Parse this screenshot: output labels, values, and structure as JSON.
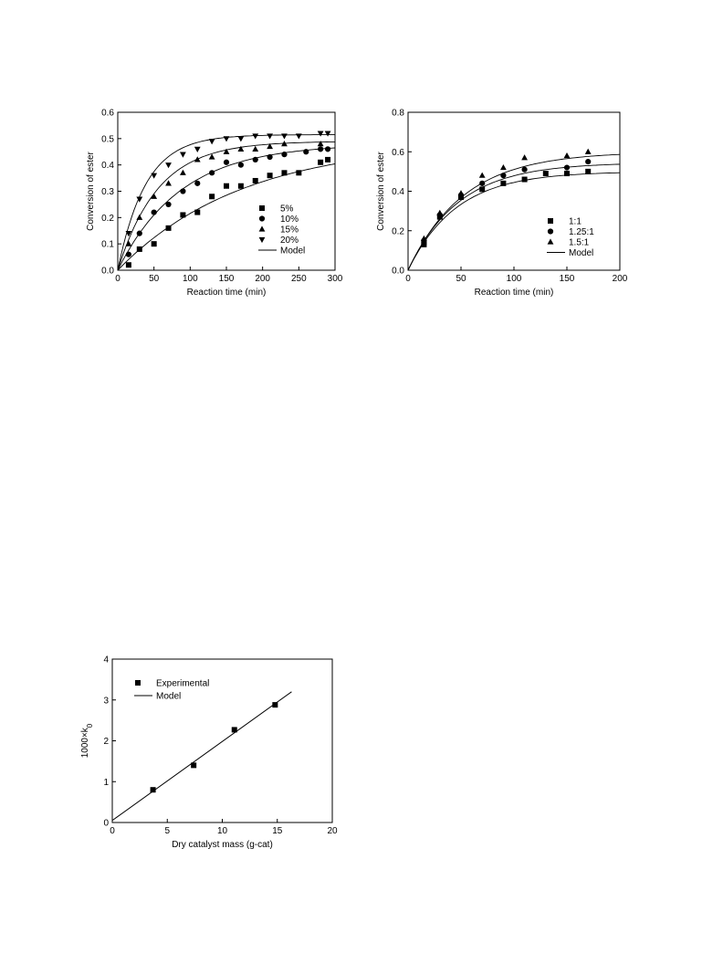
{
  "chart_data": [
    {
      "type": "scatter",
      "xlabel": "Reaction time (min)",
      "ylabel": "Conversion of ester",
      "xlim": [
        0,
        300
      ],
      "ylim": [
        0,
        0.6
      ],
      "xticks": [
        "0",
        "50",
        "100",
        "150",
        "200",
        "250",
        "300"
      ],
      "yticks": [
        "0.0",
        "0.1",
        "0.2",
        "0.3",
        "0.4",
        "0.5",
        "0.6"
      ],
      "legend_position": "bottom-right",
      "series": [
        {
          "name": "5%",
          "marker": "square",
          "points": [
            [
              15,
              0.02
            ],
            [
              30,
              0.08
            ],
            [
              50,
              0.1
            ],
            [
              70,
              0.16
            ],
            [
              90,
              0.21
            ],
            [
              110,
              0.22
            ],
            [
              130,
              0.28
            ],
            [
              150,
              0.32
            ],
            [
              170,
              0.32
            ],
            [
              190,
              0.34
            ],
            [
              210,
              0.36
            ],
            [
              230,
              0.37
            ],
            [
              250,
              0.37
            ],
            [
              280,
              0.41
            ],
            [
              290,
              0.42
            ]
          ]
        },
        {
          "name": "10%",
          "marker": "circle",
          "points": [
            [
              15,
              0.06
            ],
            [
              30,
              0.14
            ],
            [
              50,
              0.22
            ],
            [
              70,
              0.25
            ],
            [
              90,
              0.3
            ],
            [
              110,
              0.33
            ],
            [
              130,
              0.37
            ],
            [
              150,
              0.41
            ],
            [
              170,
              0.4
            ],
            [
              190,
              0.42
            ],
            [
              210,
              0.43
            ],
            [
              230,
              0.44
            ],
            [
              260,
              0.45
            ],
            [
              280,
              0.46
            ],
            [
              290,
              0.46
            ]
          ]
        },
        {
          "name": "15%",
          "marker": "triangle-up",
          "points": [
            [
              15,
              0.1
            ],
            [
              30,
              0.2
            ],
            [
              50,
              0.28
            ],
            [
              70,
              0.33
            ],
            [
              90,
              0.37
            ],
            [
              110,
              0.42
            ],
            [
              130,
              0.43
            ],
            [
              150,
              0.45
            ],
            [
              170,
              0.46
            ],
            [
              190,
              0.46
            ],
            [
              210,
              0.47
            ],
            [
              230,
              0.48
            ],
            [
              280,
              0.48
            ]
          ]
        },
        {
          "name": "20%",
          "marker": "triangle-down",
          "points": [
            [
              15,
              0.14
            ],
            [
              30,
              0.27
            ],
            [
              50,
              0.36
            ],
            [
              70,
              0.4
            ],
            [
              90,
              0.44
            ],
            [
              110,
              0.46
            ],
            [
              130,
              0.49
            ],
            [
              150,
              0.5
            ],
            [
              170,
              0.5
            ],
            [
              190,
              0.51
            ],
            [
              210,
              0.51
            ],
            [
              230,
              0.51
            ],
            [
              250,
              0.51
            ],
            [
              280,
              0.52
            ],
            [
              290,
              0.52
            ]
          ]
        },
        {
          "name": "Model",
          "marker": "line",
          "curves": [
            {
              "xe": 0.49,
              "k": 0.0058
            },
            {
              "xe": 0.48,
              "k": 0.0115
            },
            {
              "xe": 0.49,
              "k": 0.018
            },
            {
              "xe": 0.515,
              "k": 0.026
            }
          ]
        }
      ]
    },
    {
      "type": "scatter",
      "xlabel": "Reaction time (min)",
      "ylabel": "Conversion of ester",
      "xlim": [
        0,
        200
      ],
      "ylim": [
        0,
        0.8
      ],
      "xticks": [
        "0",
        "50",
        "100",
        "150",
        "200"
      ],
      "yticks": [
        "0.0",
        "0.2",
        "0.4",
        "0.6",
        "0.8"
      ],
      "legend_position": "bottom-right",
      "series": [
        {
          "name": "1:1",
          "marker": "square",
          "points": [
            [
              15,
              0.13
            ],
            [
              15,
              0.14
            ],
            [
              30,
              0.27
            ],
            [
              50,
              0.37
            ],
            [
              70,
              0.41
            ],
            [
              90,
              0.44
            ],
            [
              110,
              0.46
            ],
            [
              130,
              0.49
            ],
            [
              150,
              0.49
            ],
            [
              170,
              0.5
            ]
          ]
        },
        {
          "name": "1.25:1",
          "marker": "circle",
          "points": [
            [
              15,
              0.15
            ],
            [
              30,
              0.28
            ],
            [
              50,
              0.38
            ],
            [
              70,
              0.44
            ],
            [
              90,
              0.48
            ],
            [
              110,
              0.51
            ],
            [
              150,
              0.52
            ],
            [
              170,
              0.55
            ]
          ]
        },
        {
          "name": "1.5:1",
          "marker": "triangle-up",
          "points": [
            [
              15,
              0.16
            ],
            [
              30,
              0.29
            ],
            [
              50,
              0.39
            ],
            [
              70,
              0.48
            ],
            [
              90,
              0.52
            ],
            [
              110,
              0.57
            ],
            [
              150,
              0.58
            ],
            [
              170,
              0.6
            ]
          ]
        },
        {
          "name": "Model",
          "marker": "line",
          "curves": [
            {
              "xe": 0.5,
              "k": 0.022
            },
            {
              "xe": 0.545,
              "k": 0.021
            },
            {
              "xe": 0.6,
              "k": 0.019
            }
          ]
        }
      ]
    },
    {
      "type": "scatter",
      "xlabel": "Dry catalyst mass  (g-cat)",
      "ylabel": "1000×k",
      "ylabel_subscript": "0",
      "xlim": [
        0,
        20
      ],
      "ylim": [
        0,
        4
      ],
      "xticks": [
        "0",
        "5",
        "10",
        "15",
        "20"
      ],
      "yticks": [
        "0",
        "1",
        "2",
        "3",
        "4"
      ],
      "legend_position": "top-left",
      "series": [
        {
          "name": "Experimental",
          "marker": "square",
          "points": [
            [
              3.7,
              0.8
            ],
            [
              7.4,
              1.4
            ],
            [
              11.1,
              2.27
            ],
            [
              14.8,
              2.88
            ]
          ]
        },
        {
          "name": "Model",
          "marker": "line",
          "line": [
            [
              0,
              0.05
            ],
            [
              16.3,
              3.2
            ]
          ]
        }
      ]
    }
  ]
}
